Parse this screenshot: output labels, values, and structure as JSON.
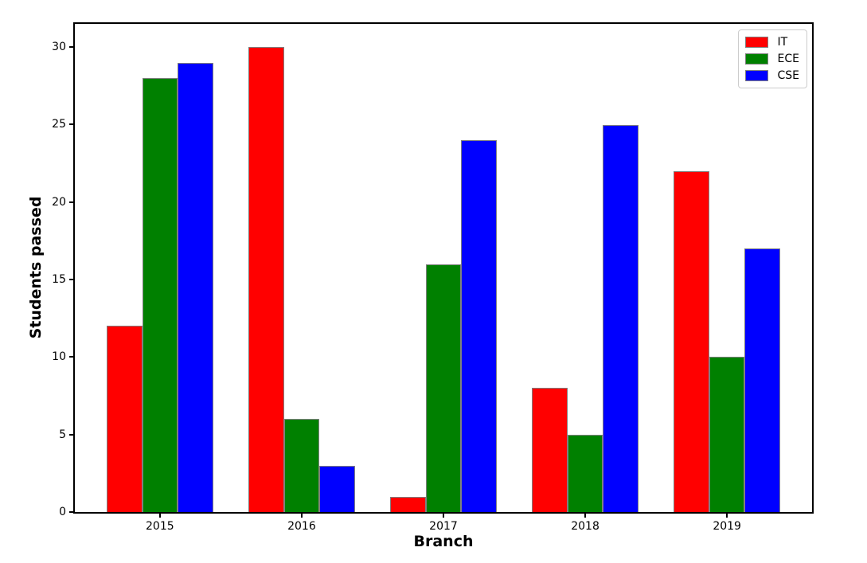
{
  "chart_data": {
    "type": "bar",
    "title": "",
    "xlabel": "Branch",
    "ylabel": "Students passed",
    "categories": [
      "2015",
      "2016",
      "2017",
      "2018",
      "2019"
    ],
    "x": [
      2015,
      2016,
      2017,
      2018,
      2019
    ],
    "series": [
      {
        "name": "IT",
        "color": "#ff0000",
        "values": [
          12,
          30,
          1,
          8,
          22
        ]
      },
      {
        "name": "ECE",
        "color": "#008000",
        "values": [
          28,
          6,
          16,
          5,
          10
        ]
      },
      {
        "name": "CSE",
        "color": "#0000ff",
        "values": [
          29,
          3,
          24,
          25,
          17
        ]
      }
    ],
    "bar_width": 0.25,
    "bar_edge_color": "#808080",
    "xlim": [
      2014.4,
      2019.6
    ],
    "ylim": [
      0,
      31.5
    ],
    "yticks": [
      0,
      5,
      10,
      15,
      20,
      25,
      30
    ],
    "grid": false,
    "legend": {
      "position": "top-right",
      "entries": [
        "IT",
        "ECE",
        "CSE"
      ]
    },
    "axis_color": "#000000",
    "background_color": "#ffffff"
  }
}
